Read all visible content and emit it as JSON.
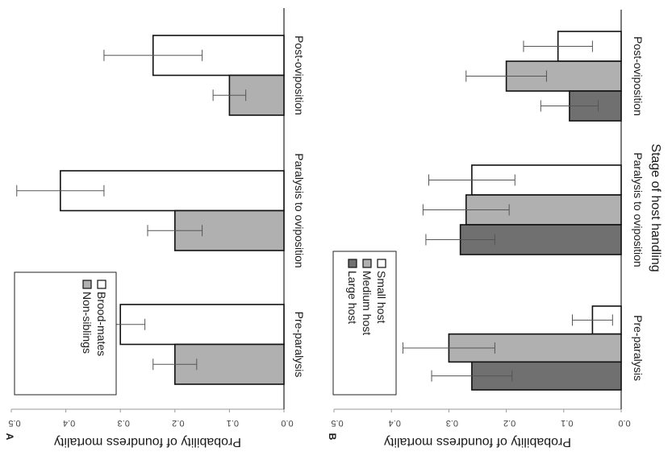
{
  "chart_data": [
    {
      "type": "bar",
      "panel_label": "A",
      "categories": [
        "Pre-paralysis",
        "Paralysis to oviposition",
        "Post-oviposition"
      ],
      "series": [
        {
          "name": "Brood-mates",
          "values": [
            0.3,
            0.41,
            0.24
          ],
          "error": [
            0.045,
            0.08,
            0.09
          ],
          "color": "#ffffff"
        },
        {
          "name": "Non-siblings",
          "values": [
            0.2,
            0.2,
            0.1
          ],
          "error": [
            0.04,
            0.05,
            0.03
          ],
          "color": "#b0b0b0"
        }
      ],
      "ylabel": "Probability of foundress mortality",
      "ylim": [
        0,
        0.5
      ],
      "yticks": [
        "0.0",
        "0.1",
        "0.2",
        "0.3",
        "0.4",
        "0.5"
      ],
      "legend_position": "top-right",
      "orientation": "rotated 90 degrees clockwise"
    },
    {
      "type": "bar",
      "panel_label": "B",
      "categories": [
        "Pre-paralysis",
        "Paralysis to oviposition",
        "Post-oviposition"
      ],
      "series": [
        {
          "name": "Small host",
          "values": [
            0.05,
            0.26,
            0.11
          ],
          "error": [
            0.035,
            0.075,
            0.06
          ],
          "color": "#ffffff"
        },
        {
          "name": "Medium host",
          "values": [
            0.3,
            0.27,
            0.2
          ],
          "error": [
            0.08,
            0.075,
            0.07
          ],
          "color": "#b0b0b0"
        },
        {
          "name": "Large host",
          "values": [
            0.26,
            0.28,
            0.09
          ],
          "error": [
            0.07,
            0.06,
            0.05
          ],
          "color": "#707070"
        }
      ],
      "ylabel": "Probability of foundress mortality",
      "xlabel": "Stage of host handling",
      "ylim": [
        0,
        0.5
      ],
      "yticks": [
        "0.0",
        "0.1",
        "0.2",
        "0.3",
        "0.4",
        "0.5"
      ],
      "legend_position": "top-right",
      "orientation": "rotated 90 degrees clockwise"
    }
  ]
}
